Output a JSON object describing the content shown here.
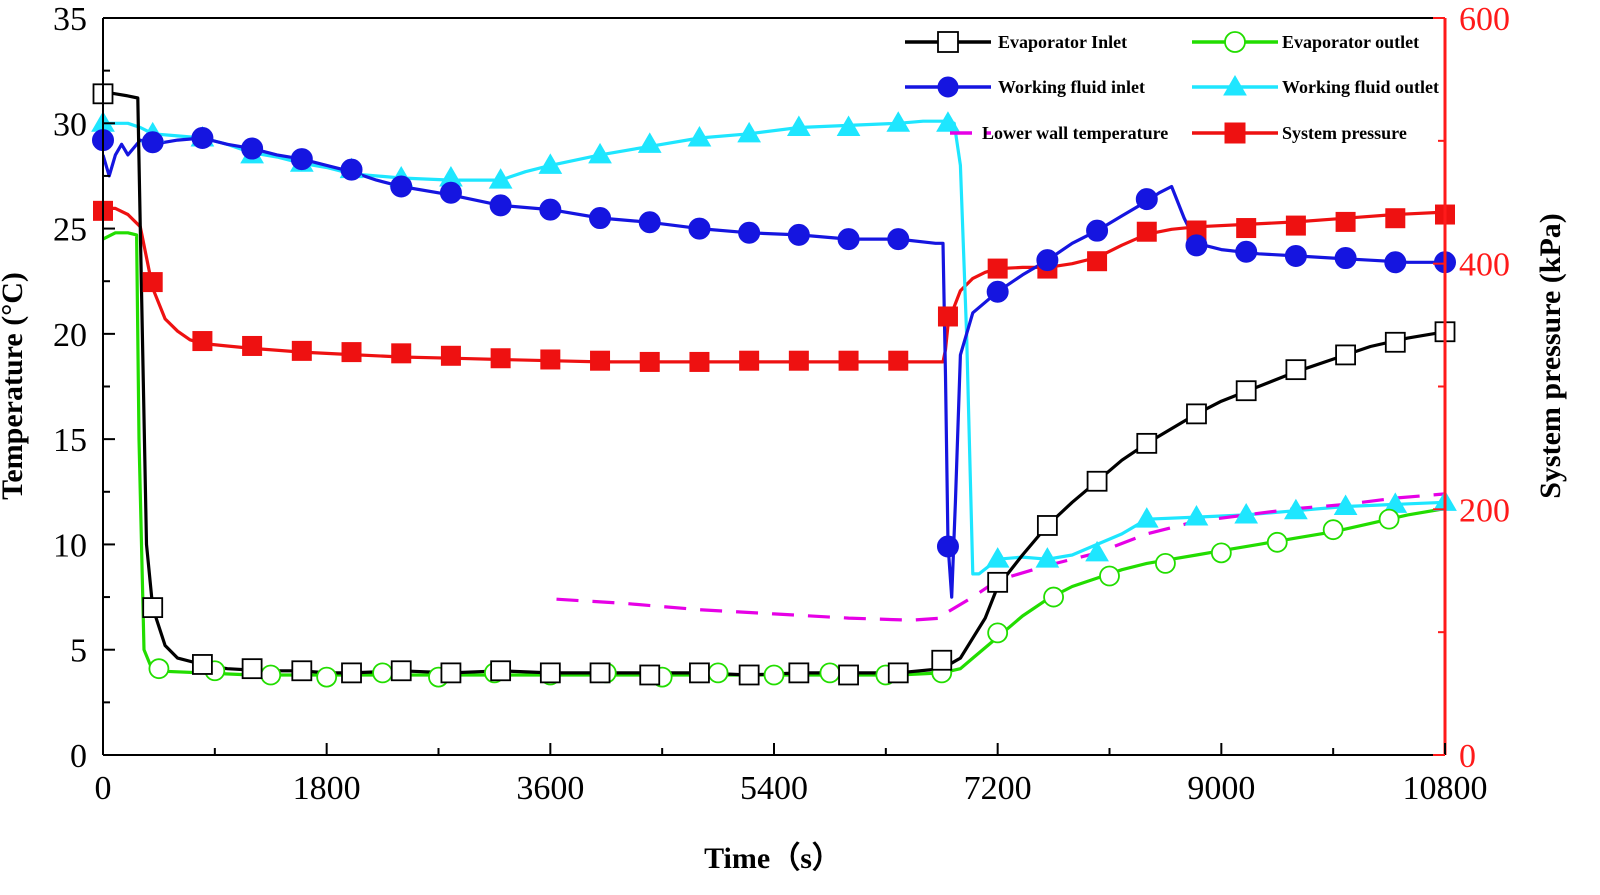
{
  "chart_data": {
    "type": "line",
    "xlabel": "Time（s）",
    "ylabel_left": "Temperature (°C)",
    "ylabel_right": "System pressure (kPa)",
    "xlim": [
      0,
      10800
    ],
    "ylim_left": [
      0,
      35
    ],
    "ylim_right": [
      0,
      600
    ],
    "x_ticks": [
      "0",
      "1800",
      "3600",
      "5400",
      "7200",
      "9000",
      "10800"
    ],
    "y_left_ticks": [
      "0",
      "5",
      "10",
      "15",
      "20",
      "25",
      "30",
      "35"
    ],
    "y_right_ticks": [
      "0",
      "200",
      "400",
      "600"
    ],
    "right_axis_color": "#ff1a1a",
    "grid": false,
    "legend_placement": "top-right",
    "series": [
      {
        "name": "Evaporator Inlet",
        "axis": "left",
        "color": "#000000",
        "marker": "open-square",
        "x": [
          0,
          100,
          200,
          280,
          300,
          350,
          400,
          500,
          600,
          800,
          1000,
          1300,
          1600,
          1800,
          2000,
          2400,
          2800,
          3200,
          3600,
          4000,
          4400,
          4800,
          5200,
          5600,
          6000,
          6400,
          6750,
          6900,
          7100,
          7200,
          7400,
          7600,
          7800,
          8000,
          8200,
          8400,
          8600,
          8800,
          9000,
          9300,
          9600,
          9900,
          10200,
          10500,
          10800
        ],
        "y": [
          31.5,
          31.4,
          31.3,
          31.2,
          25.0,
          10.0,
          7.0,
          5.2,
          4.6,
          4.3,
          4.1,
          4.0,
          4.0,
          3.9,
          3.9,
          4.0,
          3.9,
          4.0,
          3.9,
          3.9,
          3.9,
          3.9,
          3.8,
          3.9,
          3.9,
          3.9,
          4.1,
          4.6,
          6.5,
          8.0,
          9.5,
          10.9,
          12.0,
          13.0,
          14.0,
          14.8,
          15.5,
          16.2,
          16.8,
          17.5,
          18.2,
          18.8,
          19.4,
          19.8,
          20.1
        ],
        "marker_x": [
          0,
          400,
          800,
          1200,
          1600,
          2000,
          2400,
          2800,
          3200,
          3600,
          4000,
          4400,
          4800,
          5200,
          5600,
          6000,
          6400,
          6750,
          7200,
          7600,
          8000,
          8400,
          8800,
          9200,
          9600,
          10000,
          10400,
          10800
        ],
        "marker_y": [
          31.4,
          7.0,
          4.3,
          4.1,
          4.0,
          3.9,
          4.0,
          3.9,
          4.0,
          3.9,
          3.9,
          3.8,
          3.9,
          3.8,
          3.9,
          3.8,
          3.9,
          4.5,
          8.2,
          10.9,
          13.0,
          14.8,
          16.2,
          17.3,
          18.3,
          19.0,
          19.6,
          20.1
        ]
      },
      {
        "name": "Evaporator outlet",
        "axis": "left",
        "color": "#22dd00",
        "marker": "open-circle",
        "x": [
          0,
          100,
          200,
          270,
          290,
          330,
          400,
          800,
          1200,
          1600,
          2000,
          2400,
          2800,
          3200,
          3600,
          4000,
          4400,
          4800,
          5200,
          5600,
          6000,
          6400,
          6750,
          6900,
          7000,
          7200,
          7400,
          7600,
          7800,
          8000,
          8200,
          8400,
          8600,
          8800,
          9000,
          9300,
          9600,
          9900,
          10200,
          10500,
          10800
        ],
        "y": [
          24.5,
          24.8,
          24.8,
          24.7,
          15.0,
          5.0,
          4.0,
          3.9,
          3.8,
          3.8,
          3.8,
          3.8,
          3.8,
          3.8,
          3.8,
          3.8,
          3.8,
          3.8,
          3.8,
          3.8,
          3.8,
          3.8,
          3.9,
          4.1,
          4.6,
          5.6,
          6.6,
          7.4,
          8.0,
          8.4,
          8.8,
          9.1,
          9.3,
          9.5,
          9.7,
          10.0,
          10.3,
          10.6,
          11.0,
          11.4,
          11.7
        ],
        "marker_x": [
          450,
          900,
          1350,
          1800,
          2250,
          2700,
          3150,
          3600,
          4050,
          4500,
          4950,
          5400,
          5850,
          6300,
          6750,
          7200,
          7650,
          8100,
          8550,
          9000,
          9450,
          9900,
          10350
        ],
        "marker_y": [
          4.1,
          4.0,
          3.8,
          3.7,
          3.9,
          3.7,
          3.9,
          3.8,
          3.9,
          3.7,
          3.9,
          3.8,
          3.9,
          3.8,
          3.9,
          5.8,
          7.5,
          8.5,
          9.1,
          9.6,
          10.1,
          10.7,
          11.2
        ]
      },
      {
        "name": "Working fluid inlet",
        "axis": "left",
        "color": "#1515e0",
        "marker": "filled-circle",
        "x": [
          0,
          50,
          100,
          150,
          200,
          300,
          400,
          600,
          800,
          1000,
          1200,
          1400,
          1600,
          1800,
          2000,
          2200,
          2400,
          2800,
          3200,
          3600,
          4000,
          4400,
          4800,
          5200,
          5600,
          6000,
          6400,
          6700,
          6760,
          6780,
          6800,
          6830,
          6860,
          6900,
          7000,
          7200,
          7400,
          7600,
          7800,
          8000,
          8200,
          8400,
          8500,
          8600,
          8700,
          8800,
          9000,
          9300,
          9600,
          9900,
          10200,
          10500,
          10800
        ],
        "y": [
          28.5,
          27.5,
          28.5,
          29.0,
          28.5,
          29.2,
          29.0,
          29.2,
          29.3,
          29.0,
          28.8,
          28.5,
          28.3,
          28.0,
          27.7,
          27.3,
          27.0,
          26.6,
          26.1,
          25.9,
          25.5,
          25.3,
          25.0,
          24.8,
          24.7,
          24.5,
          24.5,
          24.3,
          24.3,
          18.0,
          10.0,
          7.5,
          12.0,
          19.0,
          21.0,
          22.0,
          22.8,
          23.5,
          24.3,
          24.9,
          25.6,
          26.3,
          26.7,
          27.0,
          25.5,
          24.3,
          24.0,
          23.8,
          23.7,
          23.6,
          23.5,
          23.4,
          23.4
        ],
        "marker_x": [
          0,
          400,
          800,
          1200,
          1600,
          2000,
          2400,
          2800,
          3200,
          3600,
          4000,
          4400,
          4800,
          5200,
          5600,
          6000,
          6400,
          6800,
          7200,
          7600,
          8000,
          8400,
          8800,
          9200,
          9600,
          10000,
          10400,
          10800
        ],
        "marker_y": [
          29.2,
          29.1,
          29.3,
          28.8,
          28.3,
          27.8,
          27.0,
          26.7,
          26.1,
          25.9,
          25.5,
          25.3,
          25.0,
          24.8,
          24.7,
          24.5,
          24.5,
          9.9,
          22.0,
          23.5,
          24.9,
          26.4,
          24.2,
          23.9,
          23.7,
          23.6,
          23.4,
          23.4
        ]
      },
      {
        "name": "Working fluid outlet",
        "axis": "left",
        "color": "#1ee6ff",
        "marker": "filled-triangle",
        "x": [
          0,
          100,
          200,
          300,
          400,
          600,
          800,
          1000,
          1200,
          1400,
          1600,
          1800,
          2000,
          2400,
          2800,
          3200,
          3400,
          3600,
          4000,
          4400,
          4800,
          5200,
          5600,
          6000,
          6400,
          6600,
          6800,
          6850,
          6900,
          6950,
          7000,
          7050,
          7200,
          7400,
          7600,
          7800,
          8000,
          8200,
          8400,
          8800,
          9200,
          9600,
          10000,
          10400,
          10800
        ],
        "y": [
          30.0,
          30.0,
          30.0,
          29.8,
          29.5,
          29.4,
          29.3,
          29.0,
          28.6,
          28.4,
          28.1,
          27.9,
          27.6,
          27.4,
          27.3,
          27.3,
          27.7,
          28.0,
          28.5,
          28.9,
          29.3,
          29.5,
          29.8,
          29.9,
          30.0,
          30.1,
          30.1,
          30.0,
          28.0,
          20.0,
          8.6,
          8.6,
          9.3,
          9.4,
          9.3,
          9.5,
          10.0,
          10.5,
          11.2,
          11.3,
          11.4,
          11.6,
          11.8,
          11.9,
          12.0
        ],
        "marker_x": [
          0,
          400,
          800,
          1200,
          1600,
          2000,
          2400,
          2800,
          3200,
          3600,
          4000,
          4400,
          4800,
          5200,
          5600,
          6000,
          6400,
          6800,
          7200,
          7600,
          8000,
          8400,
          8800,
          9200,
          9600,
          10000,
          10400,
          10800
        ],
        "marker_y": [
          30.0,
          29.5,
          29.3,
          28.5,
          28.1,
          27.8,
          27.4,
          27.4,
          27.3,
          28.0,
          28.5,
          29.0,
          29.3,
          29.5,
          29.8,
          29.8,
          30.0,
          30.0,
          9.3,
          9.3,
          9.6,
          11.2,
          11.3,
          11.4,
          11.6,
          11.8,
          11.9,
          12.0
        ]
      },
      {
        "name": "Lower wall temperature",
        "axis": "left",
        "color": "#e600e6",
        "marker": "none",
        "dashed": true,
        "x": [
          3650,
          4200,
          4800,
          5400,
          6000,
          6500,
          6750,
          6800,
          7000,
          7200,
          7600,
          8000,
          8400,
          8800,
          9200,
          9600,
          10000,
          10400,
          10800
        ],
        "y": [
          7.4,
          7.2,
          6.9,
          6.7,
          6.5,
          6.4,
          6.5,
          6.8,
          7.5,
          8.3,
          9.0,
          9.6,
          10.5,
          11.1,
          11.4,
          11.7,
          11.9,
          12.2,
          12.4
        ]
      },
      {
        "name": "System pressure",
        "axis": "right",
        "color": "#ee1111",
        "marker": "filled-square",
        "x": [
          0,
          50,
          100,
          200,
          300,
          350,
          400,
          500,
          600,
          700,
          800,
          1000,
          1200,
          1600,
          2000,
          2400,
          2800,
          3200,
          3600,
          4000,
          4400,
          4800,
          5200,
          5600,
          6000,
          6400,
          6750,
          6760,
          6780,
          6800,
          6850,
          6900,
          7000,
          7100,
          7200,
          7400,
          7600,
          7800,
          8000,
          8200,
          8400,
          8600,
          8800,
          9200,
          9600,
          10000,
          10400,
          10800
        ],
        "y": [
          440,
          445,
          445,
          440,
          430,
          405,
          380,
          355,
          345,
          338,
          335,
          333,
          331,
          328,
          326,
          324,
          323,
          322,
          321,
          320,
          320,
          320,
          320,
          320,
          320,
          320,
          320,
          320,
          330,
          350,
          365,
          378,
          388,
          393,
          396,
          397,
          397,
          400,
          405,
          415,
          424,
          428,
          430,
          432,
          434,
          437,
          440,
          442
        ],
        "marker_x": [
          0,
          400,
          800,
          1200,
          1600,
          2000,
          2400,
          2800,
          3200,
          3600,
          4000,
          4400,
          4800,
          5200,
          5600,
          6000,
          6400,
          6800,
          7200,
          7600,
          8000,
          8400,
          8800,
          9200,
          9600,
          10000,
          10400,
          10800
        ],
        "marker_y": [
          443,
          385,
          337,
          333,
          329,
          328,
          327,
          325,
          323,
          322,
          321,
          320,
          320,
          321,
          321,
          321,
          321,
          357,
          396,
          396,
          402,
          426,
          427,
          429,
          431,
          434,
          437,
          440
        ]
      }
    ]
  }
}
